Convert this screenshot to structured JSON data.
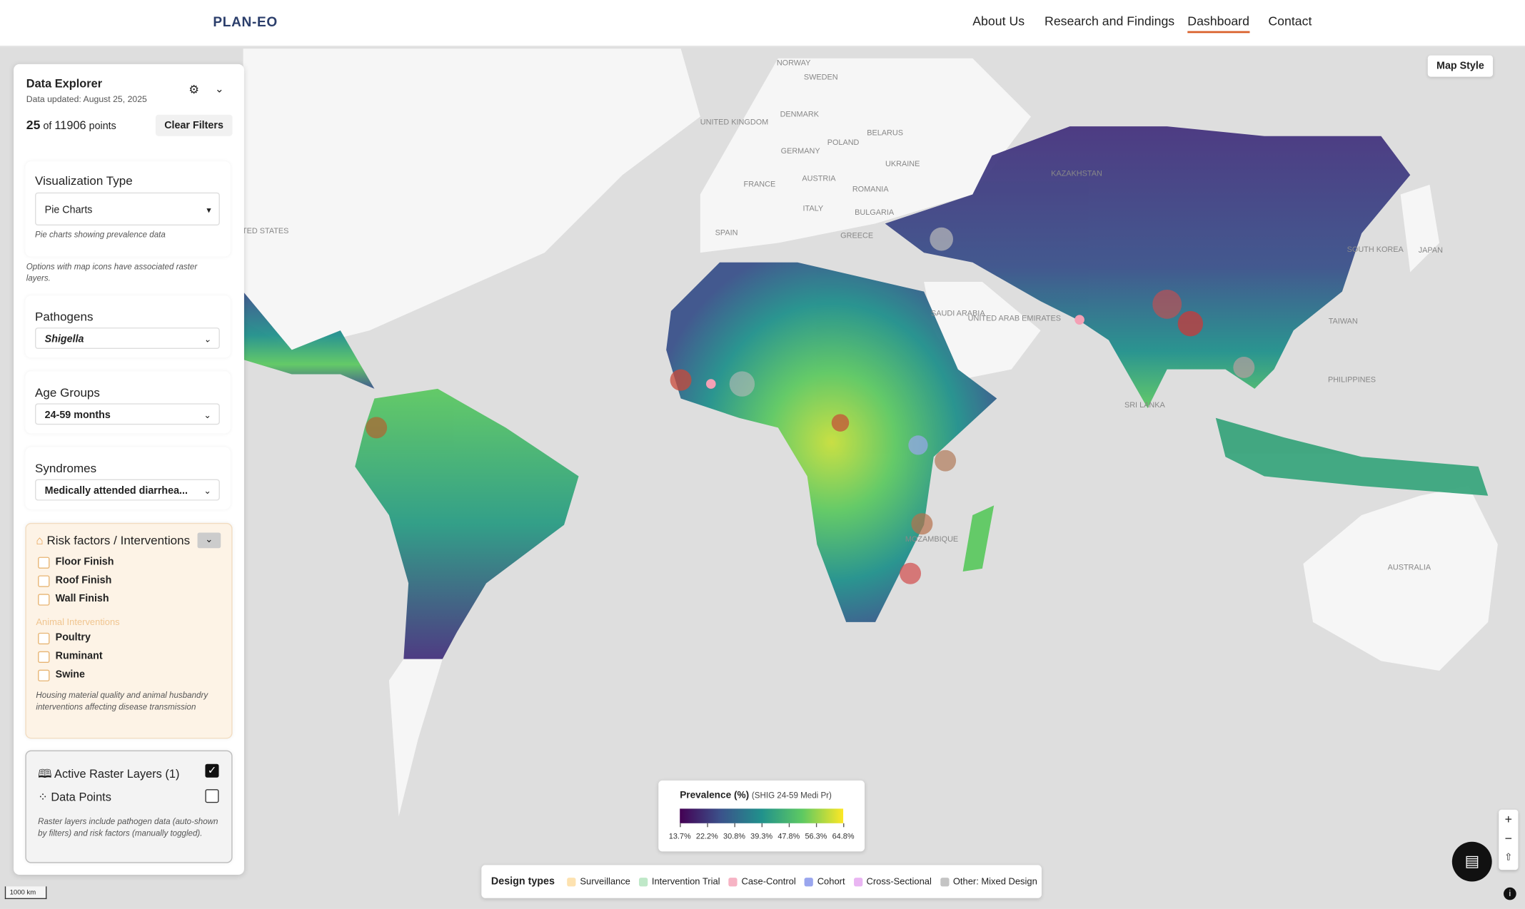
{
  "header": {
    "logo": "PLAN-EO",
    "nav": [
      "About Us",
      "Research and Findings",
      "Dashboard",
      "Contact"
    ]
  },
  "sidebar": {
    "title": "Data Explorer",
    "updated": "Data updated: August 25, 2025",
    "count": "25",
    "count_of": "of",
    "total": "11906",
    "points": "points",
    "clear": "Clear Filters",
    "viz": {
      "label": "Visualization Type",
      "value": "Pie Charts",
      "note": "Pie charts showing prevalence data"
    },
    "options_note": "Options with map icons have associated raster layers.",
    "pathogens": {
      "label": "Pathogens",
      "value": "Shigella"
    },
    "age": {
      "label": "Age Groups",
      "value": "24-59 months"
    },
    "syndromes": {
      "label": "Syndromes",
      "value": "Medically attended diarrhea..."
    },
    "risk": {
      "label": "Risk factors / Interventions",
      "items": [
        "Floor Finish",
        "Roof Finish",
        "Wall Finish"
      ],
      "animal_label": "Animal Interventions",
      "animal_items": [
        "Poultry",
        "Ruminant",
        "Swine"
      ],
      "note": "Housing material quality and animal husbandry interventions affecting disease transmission"
    },
    "layers": {
      "raster": "Active Raster Layers (1)",
      "points": "Data Points",
      "note": "Raster layers include pathogen data (auto-shown by filters) and risk factors (manually toggled)."
    }
  },
  "map": {
    "style_button": "Map Style",
    "scale": "1000 km",
    "labels": [
      "NORWAY",
      "SWEDEN",
      "UNITED KINGDOM",
      "DENMARK",
      "BELARUS",
      "POLAND",
      "GERMANY",
      "UKRAINE",
      "FRANCE",
      "AUSTRIA",
      "ROMANIA",
      "ITALY",
      "BULGARIA",
      "SPAIN",
      "GREECE",
      "UNITED STATES",
      "SAUDI ARABIA",
      "UNITED ARAB EMIRATES",
      "TAIWAN",
      "SOUTH KOREA",
      "JAPAN",
      "PHILIPPINES",
      "SRI LANKA",
      "AUSTRALIA",
      "KAZAKHSTAN",
      "MOZAMBIQUE"
    ]
  },
  "legend": {
    "title": "Prevalence (%)",
    "subtitle": "(SHIG 24-59 Medi Pr)",
    "ticks": [
      "13.7%",
      "22.2%",
      "30.8%",
      "39.3%",
      "47.8%",
      "56.3%",
      "64.8%"
    ]
  },
  "design_types": {
    "title": "Design types",
    "items": [
      {
        "name": "Surveillance",
        "color": "#fde2b0"
      },
      {
        "name": "Intervention Trial",
        "color": "#bfe8c8"
      },
      {
        "name": "Case-Control",
        "color": "#f6b3c4"
      },
      {
        "name": "Cohort",
        "color": "#9aa6ee"
      },
      {
        "name": "Cross-Sectional",
        "color": "#e9b5f2"
      },
      {
        "name": "Other: Mixed Design",
        "color": "#c4c4c4"
      }
    ]
  }
}
